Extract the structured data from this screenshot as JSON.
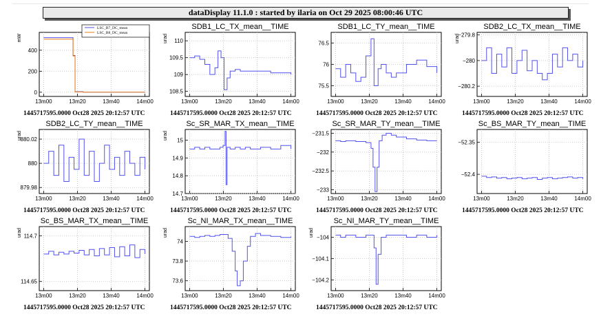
{
  "window": {
    "title": "dataDisplay 11.1.0 : started by ilaria on Oct 29 2025 08:00:46 UTC"
  },
  "footer_text": "1445717595.0000 Oct28 2025 20:12:57 UTC",
  "colors": {
    "series_blue": "#5050ee",
    "series_orange": "#ee7b10",
    "frame": "#000000",
    "grid": "#bdbdbd"
  },
  "chart_data": [
    {
      "type": "line",
      "title": "",
      "ylabel": "mW",
      "xticks": [
        "13m00",
        "13m20",
        "13m40",
        "14m00"
      ],
      "yticks": [
        0,
        200,
        400
      ],
      "ylim": [
        -40,
        570
      ],
      "xlim": [
        0,
        1
      ],
      "grid": true,
      "legend": "top-right",
      "series": [
        {
          "name": "LSC_B7_DC_mean",
          "color": "#5050ee",
          "x": [
            0,
            0.29,
            0.29,
            0.31,
            0.31,
            0.39,
            0.39,
            1
          ],
          "y": [
            520,
            520,
            350,
            350,
            5,
            5,
            0,
            0
          ]
        },
        {
          "name": "LSC_B8_DC_mean",
          "color": "#ee7b10",
          "x": [
            0,
            0.29,
            0.29,
            0.31,
            0.31,
            0.39,
            0.39,
            1
          ],
          "y": [
            505,
            505,
            345,
            345,
            3,
            3,
            0,
            0
          ]
        }
      ]
    },
    {
      "type": "line",
      "title": "SDB1_LC_TX_mean__TIME",
      "ylabel": "urad",
      "xticks": [
        "13m00",
        "13m20",
        "13m40",
        "14m00"
      ],
      "yticks": [
        108.5,
        109,
        109.5,
        110
      ],
      "ytick_labels": [
        "108.5",
        "109",
        "109.5",
        "110"
      ],
      "ylim": [
        108.35,
        110.25
      ],
      "series": [
        {
          "name": "",
          "color": "#5050ee",
          "x": [
            0,
            0.05,
            0.1,
            0.15,
            0.2,
            0.25,
            0.28,
            0.31,
            0.34,
            0.37,
            0.4,
            0.45,
            0.5,
            0.6,
            0.7,
            0.8,
            0.9,
            1
          ],
          "y": [
            109.5,
            109.55,
            109.45,
            109.3,
            109.0,
            109.2,
            109.7,
            109.5,
            108.55,
            108.9,
            109.1,
            109.15,
            109.1,
            109.1,
            109.1,
            109.05,
            109.05,
            109.0
          ]
        }
      ]
    },
    {
      "type": "line",
      "title": "SDB1_LC_TY_mean__TIME",
      "ylabel": "",
      "xticks": [
        "13m00",
        "13m20",
        "13m40",
        "14m00"
      ],
      "yticks": [
        75.5,
        76,
        76.5
      ],
      "ytick_labels": [
        "75.5",
        "76",
        "76.5"
      ],
      "ylim": [
        75.25,
        76.75
      ],
      "series": [
        {
          "name": "",
          "color": "#5050ee",
          "x": [
            0,
            0.05,
            0.1,
            0.15,
            0.2,
            0.25,
            0.3,
            0.35,
            0.38,
            0.42,
            0.45,
            0.5,
            0.55,
            0.6,
            0.7,
            0.8,
            0.9,
            1
          ],
          "y": [
            75.9,
            75.7,
            76.0,
            75.8,
            75.6,
            75.7,
            76.2,
            76.6,
            75.5,
            75.9,
            76.0,
            75.8,
            75.7,
            75.8,
            76.0,
            76.1,
            75.95,
            75.8
          ]
        }
      ]
    },
    {
      "type": "line",
      "title": "SDB2_LC_TX_mean__TIME",
      "ylabel": "urad",
      "xticks": [
        "13m00",
        "13m20",
        "13m40",
        "14m00"
      ],
      "yticks": [
        -280.2,
        -280,
        -279.8
      ],
      "ytick_labels": [
        "−280.2",
        "−280",
        "−279.8"
      ],
      "ylim": [
        -280.28,
        -279.78
      ],
      "series": [
        {
          "name": "",
          "color": "#5050ee",
          "x": [
            0,
            0.05,
            0.1,
            0.15,
            0.2,
            0.25,
            0.3,
            0.35,
            0.4,
            0.45,
            0.5,
            0.55,
            0.6,
            0.65,
            0.7,
            0.75,
            0.8,
            0.85,
            0.9,
            0.95,
            1
          ],
          "y": [
            -280.0,
            -279.9,
            -280.1,
            -279.95,
            -280.05,
            -279.9,
            -280.1,
            -280.0,
            -279.92,
            -280.08,
            -280.0,
            -280.1,
            -280.15,
            -280.1,
            -279.95,
            -280.05,
            -279.9,
            -280.0,
            -279.95,
            -280.05,
            -280.0
          ]
        }
      ]
    },
    {
      "type": "line",
      "title": "SDB2_LC_TY_mean__TIME",
      "ylabel": "urad",
      "xticks": [
        "13m00",
        "13m20",
        "13m40",
        "14m00"
      ],
      "yticks": [
        879.98,
        880,
        880.02
      ],
      "ytick_labels": [
        "879.98",
        "880",
        "880.02"
      ],
      "ylim": [
        879.975,
        880.028
      ],
      "series": [
        {
          "name": "",
          "color": "#5050ee",
          "x": [
            0,
            0.05,
            0.1,
            0.15,
            0.2,
            0.25,
            0.3,
            0.35,
            0.4,
            0.45,
            0.5,
            0.55,
            0.6,
            0.65,
            0.7,
            0.75,
            0.8,
            0.85,
            0.9,
            0.95,
            1
          ],
          "y": [
            880.0,
            880.01,
            879.99,
            880.015,
            879.985,
            880.005,
            879.995,
            880.02,
            879.99,
            880.01,
            879.985,
            880.0,
            880.015,
            879.995,
            880.005,
            879.99,
            880.01,
            880.0,
            879.99,
            880.005,
            879.995
          ]
        }
      ]
    },
    {
      "type": "line",
      "title": "Sc_SR_MAR_TX_mean__TIME",
      "ylabel": "urad",
      "xticks": [
        "13m00",
        "13m20",
        "13m40",
        "14m00"
      ],
      "yticks": [
        14.7,
        14.8,
        14.9,
        15
      ],
      "ytick_labels": [
        "14.7",
        "14.8",
        "14.9",
        "15"
      ],
      "ylim": [
        14.7,
        15.06
      ],
      "series": [
        {
          "name": "",
          "color": "#5050ee",
          "x": [
            0,
            0.05,
            0.1,
            0.15,
            0.2,
            0.25,
            0.3,
            0.33,
            0.35,
            0.36,
            0.37,
            0.4,
            0.45,
            0.5,
            0.55,
            0.6,
            0.7,
            0.8,
            0.9,
            1
          ],
          "y": [
            14.95,
            14.96,
            14.95,
            14.96,
            14.95,
            14.95,
            14.96,
            14.97,
            15.05,
            14.75,
            14.96,
            14.95,
            14.96,
            14.95,
            14.96,
            14.95,
            14.96,
            14.95,
            14.97,
            14.95
          ]
        }
      ]
    },
    {
      "type": "line",
      "title": "Sc_SR_MAR_TY_mean__TIME",
      "ylabel": "",
      "xticks": [
        "13m00",
        "13m20",
        "13m40",
        "14m00"
      ],
      "yticks": [
        -233,
        -232.5,
        -232,
        -231.5
      ],
      "ytick_labels": [
        "−233",
        "−232.5",
        "−232",
        "−231.5"
      ],
      "ylim": [
        -233.1,
        -231.4
      ],
      "series": [
        {
          "name": "",
          "color": "#5050ee",
          "x": [
            0,
            0.05,
            0.1,
            0.2,
            0.3,
            0.35,
            0.37,
            0.39,
            0.41,
            0.43,
            0.46,
            0.5,
            0.55,
            0.6,
            0.7,
            0.8,
            0.9,
            1
          ],
          "y": [
            -231.7,
            -231.72,
            -231.7,
            -231.72,
            -231.75,
            -231.9,
            -232.4,
            -233.05,
            -232.4,
            -231.7,
            -231.55,
            -231.5,
            -231.55,
            -231.6,
            -231.65,
            -231.68,
            -231.7,
            -231.7
          ]
        }
      ]
    },
    {
      "type": "line",
      "title": "Sc_BS_MAR_TY_mean__TIME",
      "ylabel": "",
      "xticks": [
        "13m00",
        "13m20",
        "13m40",
        "14m00"
      ],
      "yticks": [
        -52.4,
        -52.35
      ],
      "ytick_labels": [
        "−52.4",
        "−52.35"
      ],
      "ylim": [
        -52.43,
        -52.33
      ],
      "series": [
        {
          "name": "",
          "color": "#5050ee",
          "x": [
            0,
            0.05,
            0.1,
            0.15,
            0.2,
            0.25,
            0.3,
            0.35,
            0.4,
            0.45,
            0.5,
            0.55,
            0.6,
            0.65,
            0.7,
            0.75,
            0.8,
            0.85,
            0.9,
            0.95,
            1
          ],
          "y": [
            -52.403,
            -52.405,
            -52.404,
            -52.406,
            -52.405,
            -52.407,
            -52.406,
            -52.405,
            -52.407,
            -52.406,
            -52.405,
            -52.408,
            -52.406,
            -52.405,
            -52.407,
            -52.406,
            -52.405,
            -52.404,
            -52.406,
            -52.405,
            -52.407
          ]
        }
      ]
    },
    {
      "type": "line",
      "title": "Sc_BS_MAR_TX_mean__TIME",
      "ylabel": "urad",
      "xticks": [
        "13m00",
        "13m20",
        "13m40",
        "14m00"
      ],
      "yticks": [
        114.65,
        114.7
      ],
      "ytick_labels": [
        "114.65",
        "114.7"
      ],
      "ylim": [
        114.64,
        114.71
      ],
      "series": [
        {
          "name": "",
          "color": "#5050ee",
          "x": [
            0,
            0.05,
            0.1,
            0.15,
            0.2,
            0.25,
            0.3,
            0.35,
            0.4,
            0.45,
            0.5,
            0.55,
            0.6,
            0.65,
            0.7,
            0.75,
            0.8,
            0.85,
            0.9,
            0.95,
            1
          ],
          "y": [
            114.68,
            114.683,
            114.679,
            114.682,
            114.68,
            114.683,
            114.681,
            114.684,
            114.679,
            114.685,
            114.678,
            114.686,
            114.679,
            114.687,
            114.677,
            114.688,
            114.678,
            114.69,
            114.676,
            114.685,
            114.68
          ]
        }
      ]
    },
    {
      "type": "line",
      "title": "Sc_NI_MAR_TX_mean__TIME",
      "ylabel": "urad",
      "xticks": [
        "13m00",
        "13m20",
        "13m40",
        "14m00"
      ],
      "yticks": [
        73.6,
        73.8,
        74
      ],
      "ytick_labels": [
        "73.6",
        "73.8",
        "74"
      ],
      "ylim": [
        73.5,
        74.15
      ],
      "series": [
        {
          "name": "",
          "color": "#5050ee",
          "x": [
            0,
            0.05,
            0.1,
            0.15,
            0.2,
            0.25,
            0.3,
            0.38,
            0.42,
            0.45,
            0.47,
            0.5,
            0.53,
            0.57,
            0.6,
            0.65,
            0.7,
            0.8,
            0.9,
            1
          ],
          "y": [
            74.05,
            74.04,
            74.05,
            74.06,
            74.05,
            74.06,
            74.07,
            74.03,
            73.9,
            73.7,
            73.55,
            73.6,
            73.8,
            73.95,
            74.05,
            74.08,
            74.06,
            74.05,
            74.04,
            74.05
          ]
        }
      ]
    },
    {
      "type": "line",
      "title": "Sc_NI_MAR_TY_mean__TIME",
      "ylabel": "urad",
      "xticks": [
        "13m00",
        "13m20",
        "13m40",
        "14m00"
      ],
      "yticks": [
        -104.2,
        -104.1,
        -104
      ],
      "ytick_labels": [
        "−104.2",
        "−104.1",
        "−104"
      ],
      "ylim": [
        -104.25,
        -103.95
      ],
      "series": [
        {
          "name": "",
          "color": "#5050ee",
          "x": [
            0,
            0.05,
            0.1,
            0.2,
            0.3,
            0.35,
            0.38,
            0.4,
            0.42,
            0.45,
            0.5,
            0.6,
            0.7,
            0.8,
            0.9,
            1
          ],
          "y": [
            -103.99,
            -104.0,
            -103.99,
            -104.0,
            -103.99,
            -103.99,
            -104.05,
            -104.22,
            -104.08,
            -104.0,
            -103.99,
            -103.99,
            -104.0,
            -103.99,
            -104.0,
            -103.99
          ]
        }
      ]
    }
  ]
}
